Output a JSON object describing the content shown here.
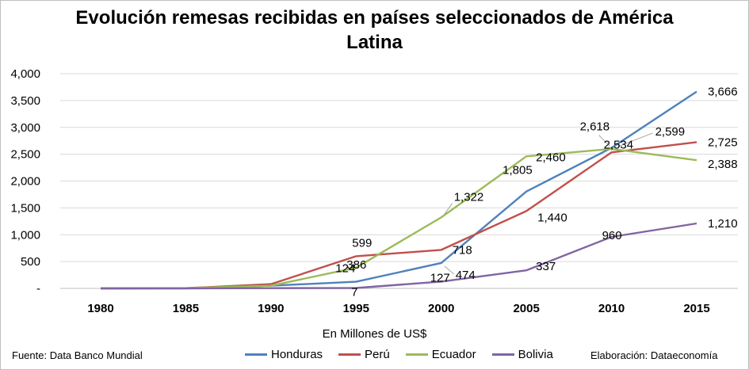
{
  "chart_data": {
    "type": "line",
    "title_line1": "Evolución remesas recibidas en países seleccionados de América",
    "title_line2": "Latina",
    "xlabel": "En Millones de US$",
    "ylabel": "",
    "x": [
      1980,
      1985,
      1990,
      1995,
      2000,
      2005,
      2010,
      2015
    ],
    "x_tick_labels": [
      "1980",
      "1985",
      "1990",
      "1995",
      "2000",
      "2005",
      "2010",
      "2015"
    ],
    "ylim": [
      0,
      4000
    ],
    "y_ticks": [
      0,
      500,
      1000,
      1500,
      2000,
      2500,
      3000,
      3500,
      4000
    ],
    "y_tick_labels": [
      "-",
      "500",
      "1,000",
      "1,500",
      "2,000",
      "2,500",
      "3,000",
      "3,500",
      "4,000"
    ],
    "grid": true,
    "legend_position": "bottom",
    "series": [
      {
        "name": "Honduras",
        "color": "#4f81bd",
        "values": [
          0,
          2,
          50,
          124,
          474,
          1805,
          2618,
          3666
        ],
        "labels": [
          null,
          null,
          null,
          "124",
          "474",
          "1,805",
          "2,618",
          "3,666"
        ]
      },
      {
        "name": "Perú",
        "color": "#c0504d",
        "values": [
          0,
          5,
          80,
          599,
          718,
          1440,
          2534,
          2725
        ],
        "labels": [
          null,
          null,
          null,
          "599",
          "718",
          "1,440",
          "2,534",
          "2,725"
        ]
      },
      {
        "name": "Ecuador",
        "color": "#9bbb59",
        "values": [
          0,
          5,
          50,
          386,
          1322,
          2460,
          2599,
          2388
        ],
        "labels": [
          null,
          null,
          null,
          "386",
          "1,322",
          "2,460",
          "2,599",
          "2,388"
        ]
      },
      {
        "name": "Bolivia",
        "color": "#8064a2",
        "values": [
          0,
          0,
          5,
          7,
          127,
          337,
          960,
          1210
        ],
        "labels": [
          null,
          null,
          null,
          "7",
          "127",
          "337",
          "960",
          "1,210"
        ]
      }
    ]
  },
  "footer": {
    "source": "Fuente: Data Banco Mundial",
    "credit": "Elaboración: Dataeconomía"
  }
}
